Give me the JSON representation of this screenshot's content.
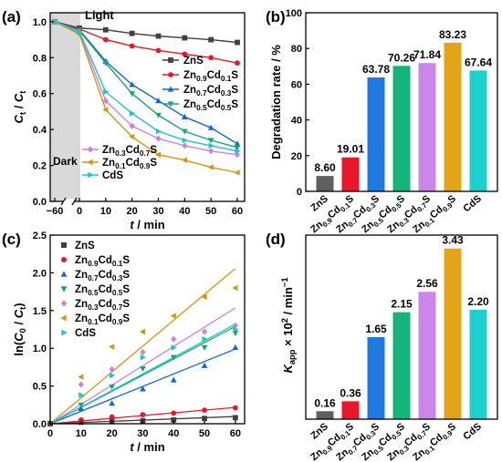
{
  "panels": {
    "a": {
      "label": "(a)"
    },
    "b": {
      "label": "(b)"
    },
    "c": {
      "label": "(c)"
    },
    "d": {
      "label": "(d)"
    }
  },
  "chart_data": [
    {
      "type": "line",
      "panel": "a",
      "xlabel": "t / min",
      "ylabel": "Ct / C0",
      "xticks": [
        "−60",
        "0",
        "10",
        "20",
        "30",
        "40",
        "50",
        "60"
      ],
      "yticks": [
        "0.0",
        "0.2",
        "0.4",
        "0.6",
        "0.8",
        "1.0"
      ],
      "xlim": [
        -5,
        63
      ],
      "ylim": [
        0,
        1.05
      ],
      "annotations": {
        "light": "Light",
        "dark": "Dark"
      },
      "x": [
        -5,
        0,
        10,
        20,
        30,
        40,
        50,
        60
      ],
      "series": [
        {
          "name": "ZnS",
          "color": "#404040",
          "marker": "square",
          "values": [
            1.0,
            0.965,
            0.955,
            0.935,
            0.92,
            0.91,
            0.9,
            0.885
          ]
        },
        {
          "name": "Zn0.9Cd0.1S",
          "color": "#e8172a",
          "marker": "circle",
          "values": [
            1.0,
            0.96,
            0.9,
            0.865,
            0.84,
            0.82,
            0.8,
            0.77
          ]
        },
        {
          "name": "Zn0.7Cd0.3S",
          "color": "#1565d8",
          "marker": "triangle-up",
          "values": [
            1.0,
            0.955,
            0.78,
            0.65,
            0.56,
            0.47,
            0.41,
            0.32
          ]
        },
        {
          "name": "Zn0.5Cd0.5S",
          "color": "#18a86b",
          "marker": "triangle-down",
          "values": [
            1.0,
            0.95,
            0.77,
            0.6,
            0.48,
            0.39,
            0.34,
            0.3
          ]
        },
        {
          "name": "Zn0.3Cd0.7S",
          "color": "#cc80e0",
          "marker": "diamond",
          "values": [
            1.0,
            0.94,
            0.56,
            0.42,
            0.35,
            0.31,
            0.28,
            0.26
          ]
        },
        {
          "name": "Zn0.1Cd0.9S",
          "color": "#d49510",
          "marker": "triangle-left",
          "values": [
            1.0,
            0.93,
            0.51,
            0.36,
            0.26,
            0.23,
            0.19,
            0.16
          ]
        },
        {
          "name": "CdS",
          "color": "#1cc6c6",
          "marker": "triangle-right",
          "values": [
            1.0,
            0.945,
            0.61,
            0.49,
            0.39,
            0.34,
            0.31,
            0.28
          ]
        }
      ],
      "legend": [
        "ZnS",
        "Zn0.9Cd0.1S",
        "Zn0.7Cd0.3S",
        "Zn0.5Cd0.5S",
        "Zn0.3Cd0.7S",
        "Zn0.1Cd0.9S",
        "CdS"
      ]
    },
    {
      "type": "bar",
      "panel": "b",
      "ylabel": "Degradation rate / %",
      "ylim": [
        0,
        100
      ],
      "yticks": [
        "0",
        "20",
        "40",
        "60",
        "80",
        "100"
      ],
      "categories": [
        "ZnS",
        "Zn0.9Cd0.1S",
        "Zn0.7Cd0.3S",
        "Zn0.5Cd0.5S",
        "Zn0.3Cd0.7S",
        "Zn0.1Cd0.9S",
        "CdS"
      ],
      "values": [
        8.6,
        19.01,
        63.78,
        70.26,
        71.84,
        83.23,
        67.64
      ],
      "labels": [
        "8.60",
        "19.01",
        "63.78",
        "70.26",
        "71.84",
        "83.23",
        "67.64"
      ],
      "colors": [
        "#5f5f5f",
        "#e8172a",
        "#1e7ae0",
        "#14b478",
        "#cc86e8",
        "#e3a517",
        "#1cd0d0"
      ]
    },
    {
      "type": "scatter",
      "panel": "c",
      "xlabel": "t / min",
      "ylabel": "ln(C0 / Ct)",
      "xlim": [
        0,
        63
      ],
      "ylim": [
        0,
        2.5
      ],
      "xticks": [
        "0",
        "10",
        "20",
        "30",
        "40",
        "50",
        "60"
      ],
      "yticks": [
        "0.0",
        "0.5",
        "1.0",
        "1.5",
        "2.0",
        "2.5"
      ],
      "x": [
        10,
        20,
        30,
        40,
        50,
        60
      ],
      "series": [
        {
          "name": "ZnS",
          "color": "#404040",
          "marker": "square",
          "slope": 0.0016,
          "values": [
            0.02,
            0.03,
            0.04,
            0.05,
            0.07,
            0.08
          ]
        },
        {
          "name": "Zn0.9Cd0.1S",
          "color": "#e8172a",
          "marker": "circle",
          "slope": 0.0036,
          "values": [
            0.05,
            0.09,
            0.12,
            0.14,
            0.18,
            0.21
          ]
        },
        {
          "name": "Zn0.7Cd0.3S",
          "color": "#1565d8",
          "marker": "triangle-up",
          "slope": 0.0165,
          "values": [
            0.2,
            0.27,
            0.46,
            0.58,
            0.77,
            1.01
          ]
        },
        {
          "name": "Zn0.5Cd0.5S",
          "color": "#18a86b",
          "marker": "triangle-down",
          "slope": 0.0215,
          "values": [
            0.25,
            0.49,
            0.73,
            0.88,
            1.01,
            1.2
          ]
        },
        {
          "name": "Zn0.3Cd0.7S",
          "color": "#cc80e0",
          "marker": "diamond",
          "slope": 0.0256,
          "values": [
            0.52,
            0.72,
            0.95,
            1.12,
            1.22,
            1.3
          ]
        },
        {
          "name": "Zn0.1Cd0.9S",
          "color": "#d49510",
          "marker": "triangle-left",
          "slope": 0.0343,
          "values": [
            0.62,
            1.02,
            1.22,
            1.43,
            1.68,
            1.8
          ]
        },
        {
          "name": "CdS",
          "color": "#1cc6c6",
          "marker": "triangle-right",
          "slope": 0.022,
          "values": [
            0.38,
            0.64,
            0.88,
            1.01,
            1.12,
            1.25
          ]
        }
      ],
      "legend": [
        "ZnS",
        "Zn0.9Cd0.1S",
        "Zn0.7Cd0.3S",
        "Zn0.5Cd0.5S",
        "Zn0.3Cd0.7S",
        "Zn0.1Cd0.9S",
        "CdS"
      ]
    },
    {
      "type": "bar",
      "panel": "d",
      "ylabel": "Kapp × 10² / min⁻¹",
      "ylim": [
        0,
        3.7
      ],
      "yticks": [],
      "categories": [
        "ZnS",
        "Zn0.9Cd0.1S",
        "Zn0.7Cd0.3S",
        "Zn0.5Cd0.5S",
        "Zn0.3Cd0.7S",
        "Zn0.1Cd0.9S",
        "CdS"
      ],
      "values": [
        0.16,
        0.36,
        1.65,
        2.15,
        2.56,
        3.43,
        2.2
      ],
      "labels": [
        "0.16",
        "0.36",
        "1.65",
        "2.15",
        "2.56",
        "3.43",
        "2.20"
      ],
      "colors": [
        "#5f5f5f",
        "#e8172a",
        "#1e7ae0",
        "#14b478",
        "#cc86e8",
        "#e3a517",
        "#1cd0d0"
      ]
    }
  ]
}
